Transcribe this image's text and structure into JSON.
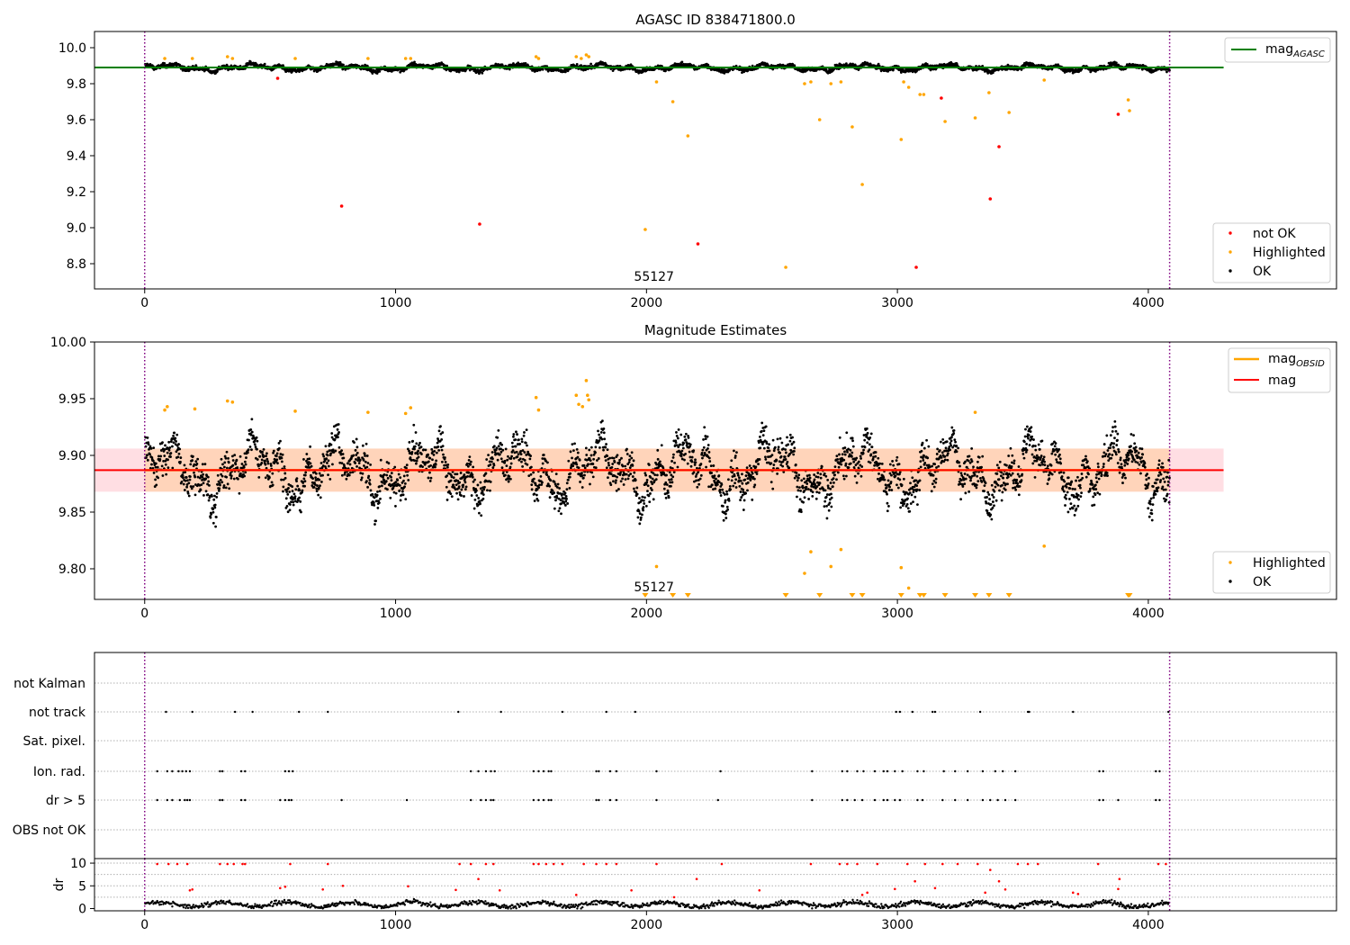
{
  "figure": {
    "x_ticks": [
      0,
      1000,
      2000,
      3000,
      4000
    ],
    "xlim": [
      -200,
      4750
    ],
    "time_boundaries": [
      0,
      4085
    ],
    "boundary_color": "#800080",
    "obsid_label": "55127",
    "obsid_label_x": 2030
  },
  "chart_data": [
    {
      "type": "scatter",
      "title": "AGASC ID 838471800.0",
      "xlabel": "",
      "ylabel": "",
      "ylim": [
        8.66,
        10.09
      ],
      "y_ticks": [
        8.8,
        9.0,
        9.2,
        9.4,
        9.6,
        9.8,
        10.0
      ],
      "y_tick_labels": [
        "8.8",
        "9.0",
        "9.2",
        "9.4",
        "9.6",
        "9.8",
        "10.0"
      ],
      "mag_agasc": 9.89,
      "mag_agasc_color": "#008000",
      "legend_line_label": "mag",
      "legend_line_subscript": "AGASC",
      "legend_line_placement": "top-right",
      "legend_points_placement": "lower-right",
      "legend_points": [
        {
          "label": "not OK",
          "color": "#ff0000"
        },
        {
          "label": "Highlighted",
          "color": "#ffa500"
        },
        {
          "label": "OK",
          "color": "#000000"
        }
      ],
      "series": [
        {
          "name": "not OK",
          "color": "#ff0000",
          "points": [
            [
              530,
              9.83
            ],
            [
              785,
              9.12
            ],
            [
              1335,
              9.02
            ],
            [
              2205,
              8.91
            ],
            [
              3075,
              8.78
            ],
            [
              3175,
              9.72
            ],
            [
              3370,
              9.16
            ],
            [
              3405,
              9.45
            ],
            [
              3880,
              9.63
            ]
          ]
        },
        {
          "name": "Highlighted",
          "color": "#ffa500",
          "points": [
            [
              1995,
              8.99
            ],
            [
              2040,
              9.81
            ],
            [
              2105,
              9.7
            ],
            [
              2165,
              9.51
            ],
            [
              2555,
              8.78
            ],
            [
              2630,
              9.8
            ],
            [
              2655,
              9.81
            ],
            [
              2690,
              9.6
            ],
            [
              2735,
              9.8
            ],
            [
              2775,
              9.81
            ],
            [
              2820,
              9.56
            ],
            [
              2860,
              9.24
            ],
            [
              3015,
              9.49
            ],
            [
              3025,
              9.81
            ],
            [
              3045,
              9.78
            ],
            [
              3090,
              9.74
            ],
            [
              3105,
              9.74
            ],
            [
              3190,
              9.59
            ],
            [
              3310,
              9.61
            ],
            [
              3365,
              9.75
            ],
            [
              3445,
              9.64
            ],
            [
              3585,
              9.82
            ],
            [
              3920,
              9.71
            ],
            [
              3925,
              9.65
            ],
            [
              80,
              9.94
            ],
            [
              190,
              9.94
            ],
            [
              330,
              9.95
            ],
            [
              350,
              9.94
            ],
            [
              600,
              9.94
            ],
            [
              890,
              9.94
            ],
            [
              1040,
              9.94
            ],
            [
              1060,
              9.94
            ],
            [
              1560,
              9.95
            ],
            [
              1570,
              9.94
            ],
            [
              1720,
              9.95
            ],
            [
              1740,
              9.94
            ],
            [
              1760,
              9.96
            ],
            [
              1770,
              9.95
            ]
          ]
        }
      ]
    },
    {
      "type": "scatter",
      "title": "Magnitude Estimates",
      "xlabel": "",
      "ylabel": "",
      "ylim": [
        9.773,
        10.0
      ],
      "y_ticks": [
        9.8,
        9.85,
        9.9,
        9.95,
        10.0
      ],
      "y_tick_labels": [
        "9.80",
        "9.85",
        "9.90",
        "9.95",
        "10.00"
      ],
      "mag": 9.887,
      "mag_band": [
        9.868,
        9.906
      ],
      "mag_obsid": 9.887,
      "mag_color": "#ff0000",
      "mag_obsid_color": "#ffa500",
      "band_color": "#ffb6c1",
      "legend_line_placement": "top-right",
      "legend_points_placement": "lower-right",
      "legend_lines": [
        {
          "label": "mag",
          "subscript": "OBSID",
          "color": "#ffa500"
        },
        {
          "label": "mag",
          "subscript": "",
          "color": "#ff0000"
        }
      ],
      "legend_points": [
        {
          "label": "Highlighted",
          "color": "#ffa500"
        },
        {
          "label": "OK",
          "color": "#000000"
        }
      ],
      "series": [
        {
          "name": "Highlighted",
          "color": "#ffa500",
          "points": [
            [
              80,
              9.94
            ],
            [
              90,
              9.943
            ],
            [
              200,
              9.941
            ],
            [
              330,
              9.948
            ],
            [
              350,
              9.947
            ],
            [
              600,
              9.939
            ],
            [
              890,
              9.938
            ],
            [
              1040,
              9.937
            ],
            [
              1060,
              9.942
            ],
            [
              1560,
              9.951
            ],
            [
              1570,
              9.94
            ],
            [
              1720,
              9.953
            ],
            [
              1730,
              9.945
            ],
            [
              1745,
              9.943
            ],
            [
              1760,
              9.966
            ],
            [
              1765,
              9.953
            ],
            [
              1770,
              9.949
            ],
            [
              3310,
              9.938
            ],
            [
              2040,
              9.802
            ],
            [
              2630,
              9.796
            ],
            [
              2655,
              9.815
            ],
            [
              2735,
              9.802
            ],
            [
              2775,
              9.817
            ],
            [
              3015,
              9.801
            ],
            [
              3045,
              9.783
            ],
            [
              3585,
              9.82
            ]
          ]
        },
        {
          "name": "Highlighted (below range)",
          "color": "#ffa500",
          "x": [
            1995,
            2105,
            2165,
            2555,
            2690,
            2820,
            2860,
            3015,
            3090,
            3105,
            3190,
            3310,
            3365,
            3445,
            3920,
            3925
          ]
        }
      ]
    },
    {
      "type": "scatter",
      "title": "",
      "xlabel": "",
      "ylabel": "",
      "categories": [
        "not Kalman",
        "not track",
        "Sat. pixel.",
        "Ion. rad.",
        "dr > 5",
        "OBS not OK"
      ],
      "flags": {
        "not track": [
          85,
          190,
          360,
          430,
          615,
          730,
          1250,
          1420,
          1665,
          1840,
          1955,
          2995,
          3010,
          3060,
          3140,
          3150,
          3330,
          3520,
          3525,
          3700,
          4080
        ],
        "Ion. rad.": [
          50,
          90,
          110,
          135,
          150,
          165,
          180,
          300,
          310,
          385,
          400,
          560,
          575,
          590,
          1300,
          1330,
          1360,
          1380,
          1395,
          1550,
          1570,
          1590,
          1610,
          1620,
          1800,
          1810,
          1855,
          1880,
          2040,
          2295,
          2660,
          2780,
          2800,
          2840,
          2865,
          2910,
          2945,
          2960,
          2990,
          3020,
          3080,
          3105,
          3185,
          3230,
          3280,
          3340,
          3390,
          3420,
          3470,
          3805,
          3820,
          4030,
          4045
        ],
        "dr > 5": [
          50,
          90,
          110,
          140,
          160,
          170,
          180,
          300,
          310,
          385,
          400,
          540,
          560,
          575,
          585,
          785,
          1045,
          1300,
          1340,
          1360,
          1380,
          1390,
          1550,
          1570,
          1590,
          1610,
          1620,
          1800,
          1810,
          1855,
          1880,
          2040,
          2285,
          2660,
          2780,
          2800,
          2830,
          2860,
          2910,
          2945,
          2960,
          2990,
          3010,
          3080,
          3100,
          3180,
          3230,
          3280,
          3340,
          3370,
          3400,
          3430,
          3470,
          3805,
          3820,
          3880,
          4030,
          4045
        ]
      }
    },
    {
      "type": "scatter",
      "title": "",
      "xlabel": "",
      "ylabel": "dr",
      "ylim": [
        -0.5,
        11
      ],
      "y_ticks": [
        0,
        5,
        10
      ],
      "y_tick_labels": [
        "0",
        "5",
        "10"
      ],
      "gridlines": [
        2.5,
        5,
        7.5,
        10
      ],
      "series": [
        {
          "name": "dr",
          "color": "#000000",
          "baseline": [
            0,
            2.2
          ]
        },
        {
          "name": "dr (flagged)",
          "color": "#ff0000",
          "points": [
            [
              50,
              9.8
            ],
            [
              95,
              9.8
            ],
            [
              130,
              9.8
            ],
            [
              170,
              9.8
            ],
            [
              180,
              4.0
            ],
            [
              190,
              4.2
            ],
            [
              300,
              9.8
            ],
            [
              330,
              9.8
            ],
            [
              355,
              9.8
            ],
            [
              390,
              9.8
            ],
            [
              400,
              9.8
            ],
            [
              540,
              4.5
            ],
            [
              560,
              4.8
            ],
            [
              580,
              9.8
            ],
            [
              710,
              4.2
            ],
            [
              730,
              9.8
            ],
            [
              790,
              5.0
            ],
            [
              1050,
              4.9
            ],
            [
              1240,
              4.1
            ],
            [
              1255,
              9.8
            ],
            [
              1300,
              9.8
            ],
            [
              1330,
              6.5
            ],
            [
              1360,
              9.8
            ],
            [
              1390,
              9.8
            ],
            [
              1415,
              4.0
            ],
            [
              1550,
              9.8
            ],
            [
              1570,
              9.8
            ],
            [
              1600,
              9.8
            ],
            [
              1630,
              9.8
            ],
            [
              1665,
              9.8
            ],
            [
              1720,
              3.0
            ],
            [
              1750,
              9.8
            ],
            [
              1800,
              9.8
            ],
            [
              1840,
              9.8
            ],
            [
              1880,
              9.8
            ],
            [
              1940,
              4.0
            ],
            [
              2040,
              9.8
            ],
            [
              2110,
              2.5
            ],
            [
              2200,
              6.5
            ],
            [
              2300,
              9.8
            ],
            [
              2450,
              4.0
            ],
            [
              2655,
              9.8
            ],
            [
              2770,
              9.8
            ],
            [
              2800,
              9.8
            ],
            [
              2840,
              9.8
            ],
            [
              2860,
              3.0
            ],
            [
              2880,
              3.5
            ],
            [
              2920,
              9.8
            ],
            [
              2990,
              4.3
            ],
            [
              3040,
              9.8
            ],
            [
              3070,
              6.0
            ],
            [
              3110,
              9.8
            ],
            [
              3150,
              4.5
            ],
            [
              3180,
              9.8
            ],
            [
              3240,
              9.8
            ],
            [
              3320,
              9.8
            ],
            [
              3350,
              3.5
            ],
            [
              3370,
              8.5
            ],
            [
              3405,
              6.0
            ],
            [
              3430,
              4.2
            ],
            [
              3480,
              9.8
            ],
            [
              3520,
              9.8
            ],
            [
              3560,
              9.8
            ],
            [
              3700,
              3.5
            ],
            [
              3720,
              3.2
            ],
            [
              3800,
              9.8
            ],
            [
              3880,
              4.3
            ],
            [
              3885,
              6.5
            ],
            [
              4040,
              9.8
            ],
            [
              4070,
              9.8
            ]
          ]
        }
      ]
    }
  ]
}
